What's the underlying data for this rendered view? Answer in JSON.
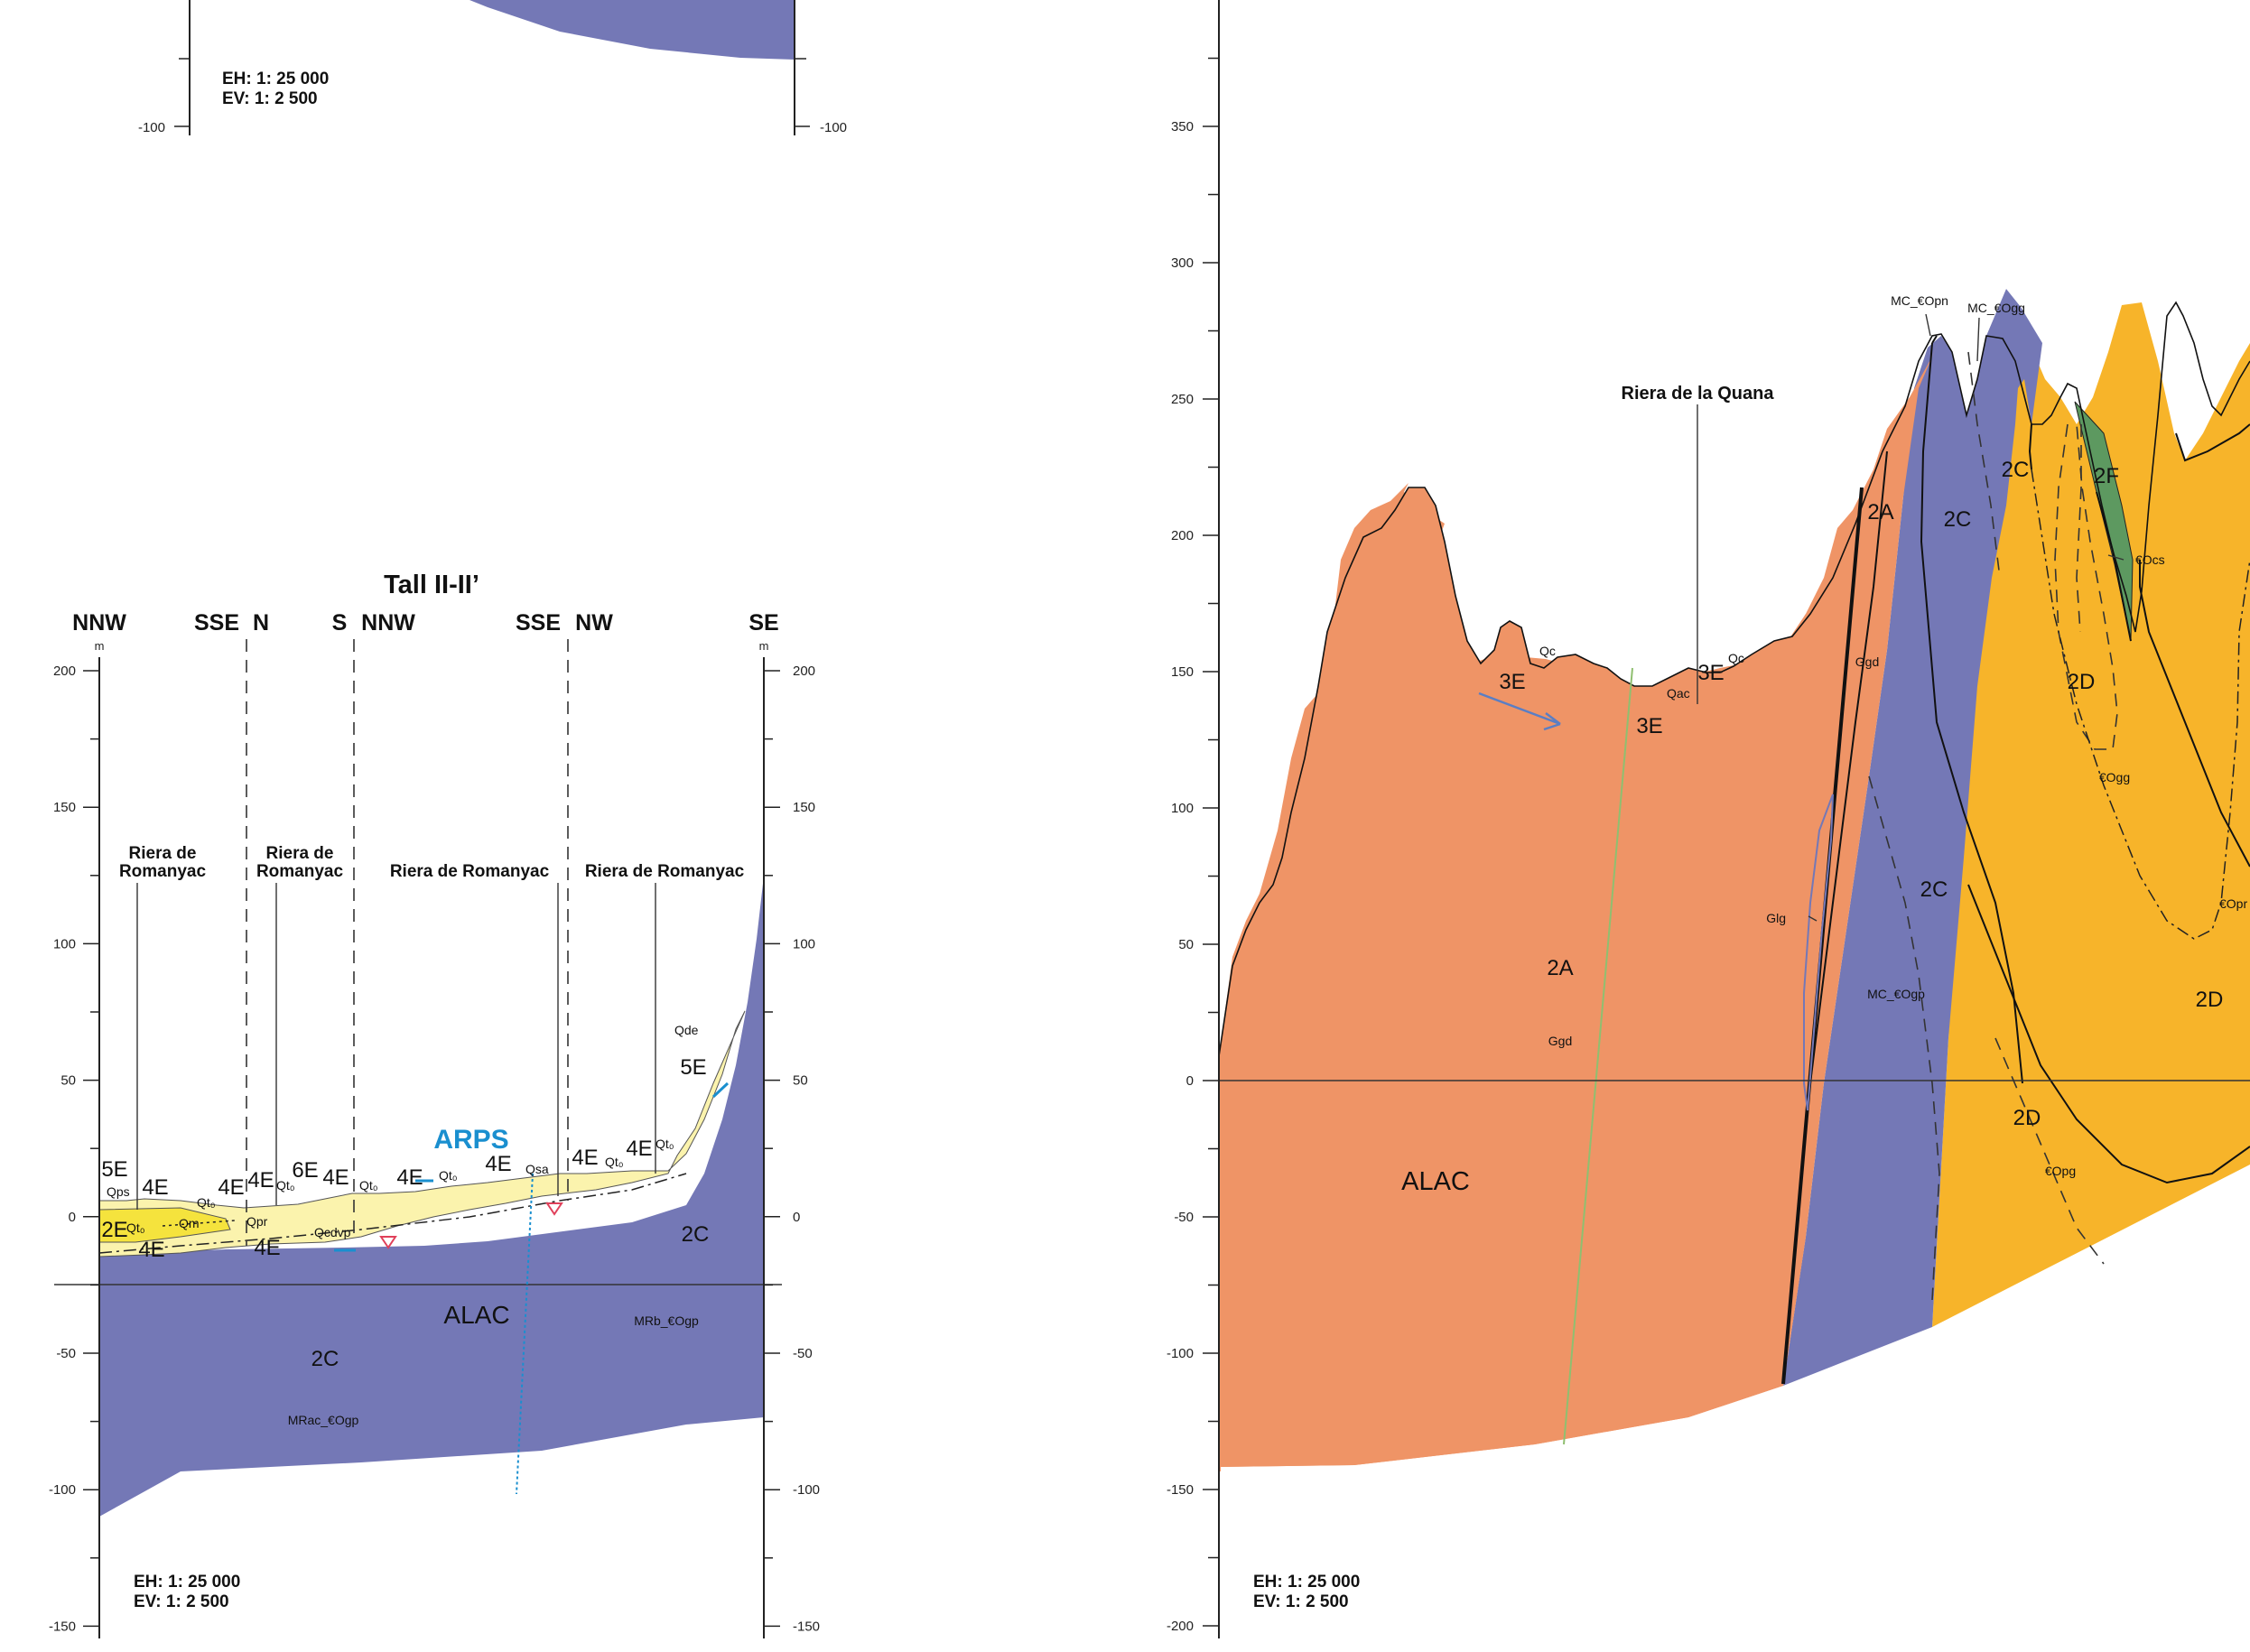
{
  "top_left": {
    "scale_h": "EH: 1: 25 000",
    "scale_v": "EV: 1: 2 500",
    "tick_left": "-100",
    "tick_right": "-100"
  },
  "left": {
    "title": "Tall II-II’",
    "orientations": [
      "NNW",
      "SSE",
      "N",
      "S",
      "NNW",
      "SSE",
      "NW",
      "SE"
    ],
    "unit": "m",
    "ticks_left": [
      "200",
      "150",
      "100",
      "50",
      "0",
      "-50",
      "-100",
      "-150"
    ],
    "ticks_right": [
      "200",
      "150",
      "100",
      "50",
      "0",
      "-50",
      "-100",
      "-150"
    ],
    "streams": [
      "Riera de",
      "Romanyac",
      "Riera de",
      "Romanyac",
      "Riera de Romanyac",
      "Riera de Romanyac"
    ],
    "aquifer": "ARPS",
    "units": [
      "5E",
      "4E",
      "2E",
      "4E",
      "4E",
      "6E",
      "4E",
      "4E",
      "4E",
      "4E",
      "4E",
      "4E",
      "5E",
      "2C",
      "2C",
      "4E",
      "ALAC"
    ],
    "small": [
      "Qps",
      "Qt₀",
      "Qm",
      "Qt₀",
      "Qpr",
      "Qt₀",
      "Qt₀",
      "Qt₀",
      "Qsa",
      "Qt₀",
      "Qt₀",
      "Qde",
      "Qcdvp",
      "MRb_€Ogp",
      "MRac_€Ogp"
    ],
    "scale_h": "EH: 1: 25 000",
    "scale_v": "EV: 1: 2 500"
  },
  "right": {
    "ticks": [
      "350",
      "300",
      "250",
      "200",
      "150",
      "100",
      "50",
      "0",
      "-50",
      "-100",
      "-150",
      "-200"
    ],
    "stream": "Riera de la Quana",
    "units": [
      "3E",
      "3E",
      "3E",
      "2A",
      "2C",
      "2C",
      "2F",
      "2D",
      "2C",
      "2A",
      "2D",
      "2D",
      "ALAC"
    ],
    "small": [
      "Qc",
      "Qc",
      "Qac",
      "MC_€Opn",
      "MC_€Ogg",
      "Ggd",
      "Glg",
      "Ggd",
      "MC_€Ogp",
      "€Ocs",
      "€Ogg",
      "€Opr",
      "€Opg"
    ],
    "scale_h": "EH: 1: 25 000",
    "scale_v": "EV: 1: 2 500"
  },
  "colors": {
    "slate": "#7478b6",
    "orange": "#ef9466",
    "yellow": "#f7b42a",
    "paleyellow": "#fbf3ad",
    "brightyellow": "#f5e33d",
    "green": "#5d9960",
    "cyan": "#1a8fcf"
  }
}
